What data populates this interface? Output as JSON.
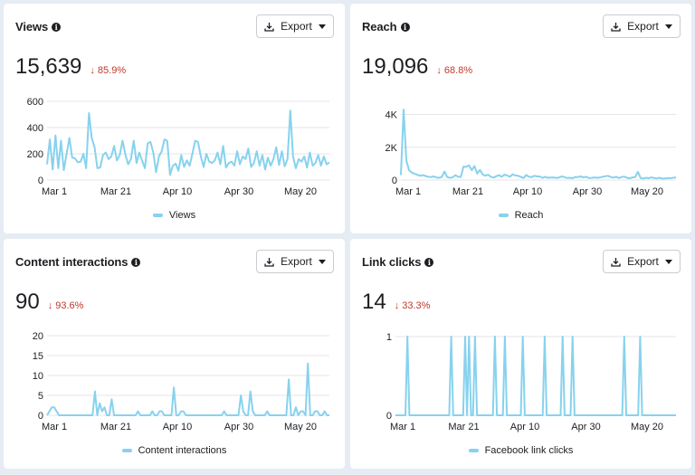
{
  "colors": {
    "line": "#87d2ee",
    "decrease": "#c0392b",
    "grid": "#e4e6eb"
  },
  "icons": {
    "info": "info-icon",
    "export": "download-icon",
    "dropdown": "caret-down-icon",
    "change": "arrow-down-icon"
  },
  "export_label": "Export",
  "cards": [
    {
      "title": "Views",
      "value": "15,639",
      "change": "85.9%",
      "legend": "Views",
      "chart_data": {
        "type": "line",
        "x_ticks": [
          "Mar 1",
          "Mar 21",
          "Apr 10",
          "Apr 30",
          "May 20"
        ],
        "y_ticks": [
          "0",
          "200",
          "400",
          "600"
        ],
        "ylim": [
          0,
          600
        ],
        "series": [
          {
            "name": "Views",
            "values": [
              120,
              310,
              80,
              340,
              90,
              300,
              75,
              200,
              320,
              170,
              165,
              135,
              140,
              200,
              90,
              510,
              320,
              250,
              90,
              95,
              190,
              210,
              160,
              180,
              260,
              150,
              190,
              300,
              195,
              120,
              160,
              300,
              130,
              210,
              150,
              90,
              280,
              290,
              210,
              60,
              180,
              220,
              310,
              300,
              40,
              110,
              125,
              70,
              190,
              100,
              150,
              110,
              200,
              300,
              290,
              180,
              100,
              200,
              140,
              130,
              150,
              210,
              120,
              260,
              95,
              130,
              140,
              110,
              220,
              120,
              180,
              160,
              240,
              100,
              130,
              220,
              110,
              190,
              80,
              170,
              110,
              160,
              250,
              115,
              220,
              105,
              160,
              530,
              180,
              90,
              160,
              140,
              180,
              95,
              210,
              110,
              130,
              190,
              110,
              180,
              120,
              135
            ]
          }
        ]
      }
    },
    {
      "title": "Reach",
      "value": "19,096",
      "change": "68.8%",
      "legend": "Reach",
      "chart_data": {
        "type": "line",
        "x_ticks": [
          "Mar 1",
          "Mar 21",
          "Apr 10",
          "Apr 30",
          "May 20"
        ],
        "y_ticks": [
          "0",
          "2K",
          "4K"
        ],
        "ylim": [
          0,
          4800
        ],
        "series": [
          {
            "name": "Reach",
            "values": [
              300,
              4300,
              1200,
              600,
              450,
              380,
              320,
              260,
              300,
              250,
              200,
              180,
              220,
              160,
              140,
              180,
              520,
              180,
              140,
              160,
              300,
              200,
              190,
              820,
              800,
              900,
              600,
              850,
              400,
              620,
              350,
              260,
              330,
              200,
              150,
              230,
              300,
              200,
              330,
              280,
              200,
              350,
              280,
              260,
              200,
              120,
              310,
              200,
              180,
              260,
              220,
              220,
              130,
              200,
              140,
              150,
              160,
              130,
              150,
              220,
              180,
              120,
              140,
              110,
              190,
              180,
              220,
              160,
              200,
              120,
              130,
              160,
              140,
              150,
              200,
              230,
              260,
              180,
              150,
              200,
              120,
              180,
              210,
              140,
              100,
              160,
              180,
              500,
              120,
              90,
              140,
              110,
              160,
              120,
              100,
              140,
              90,
              100,
              120,
              110,
              140,
              160
            ]
          }
        ]
      }
    },
    {
      "title": "Content interactions",
      "value": "90",
      "change": "93.6%",
      "legend": "Content interactions",
      "chart_data": {
        "type": "line",
        "x_ticks": [
          "Mar 1",
          "Mar 21",
          "Apr 10",
          "Apr 30",
          "May 20"
        ],
        "y_ticks": [
          "0",
          "5",
          "10",
          "15",
          "20"
        ],
        "ylim": [
          0,
          20
        ],
        "series": [
          {
            "name": "Content interactions",
            "values": [
              0,
              1,
              2,
              2,
              1,
              0,
              0,
              0,
              0,
              0,
              0,
              0,
              0,
              0,
              0,
              0,
              0,
              0,
              0,
              0,
              6,
              0,
              3,
              1,
              2,
              0,
              0,
              4,
              0,
              0,
              0,
              0,
              0,
              0,
              0,
              0,
              0,
              0,
              1,
              0,
              0,
              0,
              0,
              0,
              1,
              0,
              0,
              1,
              1,
              0,
              0,
              0,
              0,
              7,
              0,
              0,
              1,
              1,
              0,
              0,
              0,
              0,
              0,
              0,
              0,
              0,
              0,
              0,
              0,
              0,
              0,
              0,
              0,
              0,
              1,
              0,
              0,
              0,
              0,
              0,
              0,
              5,
              1,
              0,
              0,
              6,
              1,
              0,
              0,
              0,
              0,
              0,
              1,
              0,
              0,
              0,
              0,
              0,
              0,
              0,
              0,
              9,
              0,
              0,
              2,
              0,
              1,
              1,
              0,
              13,
              0,
              0,
              1,
              1,
              0,
              0,
              1,
              0,
              0
            ]
          }
        ]
      }
    },
    {
      "title": "Link clicks",
      "value": "14",
      "change": "33.3%",
      "legend": "Facebook link clicks",
      "chart_data": {
        "type": "line",
        "x_ticks": [
          "Mar 1",
          "Mar 21",
          "Apr 10",
          "Apr 30",
          "May 20"
        ],
        "y_ticks": [
          "0",
          "1"
        ],
        "ylim": [
          0,
          1
        ],
        "series": [
          {
            "name": "Facebook link clicks",
            "values": [
              0,
              0,
              0,
              0,
              0,
              0,
              1,
              0,
              0,
              0,
              0,
              0,
              0,
              0,
              0,
              0,
              0,
              0,
              0,
              0,
              0,
              0,
              0,
              0,
              0,
              0,
              0,
              0,
              1,
              0,
              0,
              0,
              0,
              0,
              0,
              1,
              0,
              1,
              0,
              0,
              1,
              0,
              0,
              0,
              0,
              0,
              0,
              0,
              0,
              0,
              1,
              0,
              0,
              0,
              0,
              1,
              0,
              0,
              0,
              0,
              0,
              0,
              0,
              0,
              1,
              0,
              0,
              0,
              0,
              0,
              0,
              0,
              0,
              0,
              0,
              1,
              0,
              0,
              0,
              0,
              0,
              0,
              0,
              0,
              1,
              0,
              0,
              0,
              0,
              1,
              0,
              0,
              0,
              0,
              0,
              0,
              0,
              0,
              0,
              0,
              0,
              0,
              0,
              0,
              0,
              0,
              0,
              0,
              0,
              0,
              0,
              0,
              0,
              0,
              0,
              1,
              0,
              0,
              0,
              0,
              0,
              0,
              0,
              1,
              0,
              0,
              0,
              0,
              0,
              0,
              0,
              0,
              0,
              0,
              0,
              0,
              0,
              0,
              0,
              0,
              0,
              0
            ]
          }
        ]
      }
    }
  ]
}
